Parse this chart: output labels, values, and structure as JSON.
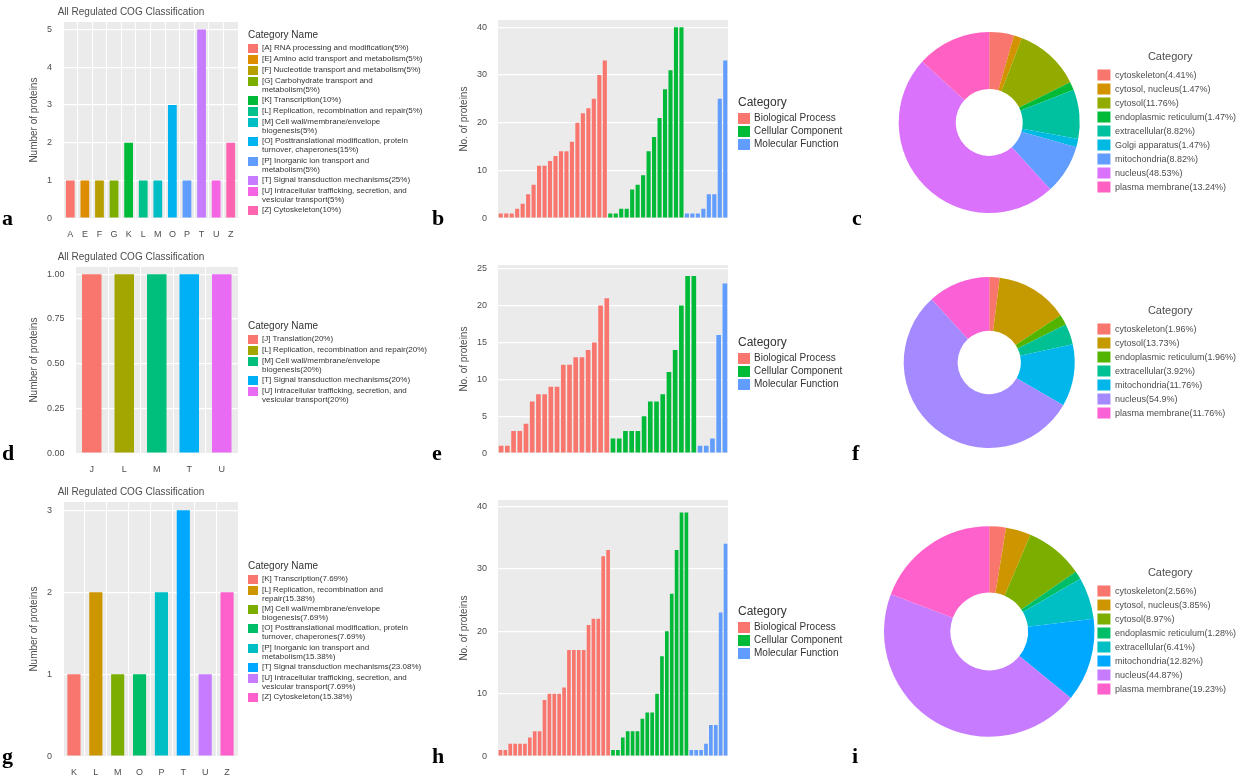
{
  "chart_data": [
    {
      "type": "bar",
      "title": "All Regulated COG Classification",
      "ylabel": "Number of proteins",
      "legend_title": "Category Name",
      "legend": "right",
      "grid": true,
      "annotations": [
        "a"
      ],
      "categories": [
        "A",
        "E",
        "F",
        "G",
        "K",
        "L",
        "M",
        "O",
        "P",
        "T",
        "U",
        "Z"
      ],
      "ylim": [
        0,
        5.2
      ],
      "yticks": [
        0,
        1,
        2,
        3,
        4,
        5
      ],
      "series": [
        {
          "name": "[A] RNA processing and modification(5%)",
          "color": "#f8766d",
          "values": [
            1,
            null,
            null,
            null,
            null,
            null,
            null,
            null,
            null,
            null,
            null,
            null
          ]
        },
        {
          "name": "[E] Amino acid transport and metabolism(5%)",
          "color": "#de8c00",
          "values": [
            null,
            1,
            null,
            null,
            null,
            null,
            null,
            null,
            null,
            null,
            null,
            null
          ]
        },
        {
          "name": "[F] Nucleotide transport and metabolism(5%)",
          "color": "#b79f00",
          "values": [
            null,
            null,
            1,
            null,
            null,
            null,
            null,
            null,
            null,
            null,
            null,
            null
          ]
        },
        {
          "name": "[G] Carbohydrate transport and metabolism(5%)",
          "color": "#7cae00",
          "values": [
            null,
            null,
            null,
            1,
            null,
            null,
            null,
            null,
            null,
            null,
            null,
            null
          ]
        },
        {
          "name": "[K] Transcription(10%)",
          "color": "#00ba38",
          "values": [
            null,
            null,
            null,
            null,
            2,
            null,
            null,
            null,
            null,
            null,
            null,
            null
          ]
        },
        {
          "name": "[L] Replication, recombination and repair(5%)",
          "color": "#00c08b",
          "values": [
            null,
            null,
            null,
            null,
            null,
            1,
            null,
            null,
            null,
            null,
            null,
            null
          ]
        },
        {
          "name": "[M] Cell wall/membrane/envelope biogenesis(5%)",
          "color": "#00bfc4",
          "values": [
            null,
            null,
            null,
            null,
            null,
            null,
            1,
            null,
            null,
            null,
            null,
            null
          ]
        },
        {
          "name": "[O] Posttranslational modification, protein turnover, chaperones(15%)",
          "color": "#00b4f0",
          "values": [
            null,
            null,
            null,
            null,
            null,
            null,
            null,
            3,
            null,
            null,
            null,
            null
          ]
        },
        {
          "name": "[P] Inorganic ion transport and metabolism(5%)",
          "color": "#619cff",
          "values": [
            null,
            null,
            null,
            null,
            null,
            null,
            null,
            null,
            1,
            null,
            null,
            null
          ]
        },
        {
          "name": "[T] Signal transduction mechanisms(25%)",
          "color": "#c77cff",
          "values": [
            null,
            null,
            null,
            null,
            null,
            null,
            null,
            null,
            null,
            5,
            null,
            null
          ]
        },
        {
          "name": "[U] Intracellular trafficking, secretion, and vesicular transport(5%)",
          "color": "#f564e3",
          "values": [
            null,
            null,
            null,
            null,
            null,
            null,
            null,
            null,
            null,
            null,
            1,
            null
          ]
        },
        {
          "name": "[Z] Cytoskeleton(10%)",
          "color": "#ff64b0",
          "values": [
            null,
            null,
            null,
            null,
            null,
            null,
            null,
            null,
            null,
            null,
            null,
            2
          ]
        }
      ]
    },
    {
      "type": "bar",
      "ylabel": "No. of proteins",
      "legend_title": "Category",
      "legend": "right",
      "grid": "y",
      "annotations": [
        "b"
      ],
      "categories": [
        null,
        null,
        null,
        null,
        null,
        null,
        null,
        null,
        null,
        null,
        null,
        null,
        null,
        null,
        null,
        null,
        null,
        null,
        null,
        null,
        null,
        null,
        null,
        null,
        null,
        null,
        null,
        null,
        null,
        null,
        null,
        null,
        null,
        null,
        null,
        null,
        null,
        null,
        null,
        null,
        null,
        null
      ],
      "ylim": [
        0,
        41.5
      ],
      "yticks": [
        0,
        10,
        20,
        30,
        40
      ],
      "series": [
        {
          "name": "Biological Process",
          "color": "#f8766d",
          "values": [
            1,
            1,
            1,
            2,
            3,
            5,
            7,
            11,
            11,
            12,
            13,
            14,
            14,
            16,
            20,
            22,
            23,
            25,
            30,
            33,
            null,
            null,
            null,
            null,
            null,
            null,
            null,
            null,
            null,
            null,
            null,
            null,
            null,
            null,
            null,
            null,
            null,
            null,
            null,
            null,
            null,
            null
          ]
        },
        {
          "name": "Cellular Component",
          "color": "#00ba38",
          "values": [
            null,
            null,
            null,
            null,
            null,
            null,
            null,
            null,
            null,
            null,
            null,
            null,
            null,
            null,
            null,
            null,
            null,
            null,
            null,
            null,
            1,
            1,
            2,
            2,
            6,
            7,
            9,
            14,
            17,
            21,
            27,
            31,
            40,
            40,
            null,
            null,
            null,
            null,
            null,
            null,
            null,
            null
          ]
        },
        {
          "name": "Molecular Function",
          "color": "#619cff",
          "values": [
            null,
            null,
            null,
            null,
            null,
            null,
            null,
            null,
            null,
            null,
            null,
            null,
            null,
            null,
            null,
            null,
            null,
            null,
            null,
            null,
            null,
            null,
            null,
            null,
            null,
            null,
            null,
            null,
            null,
            null,
            null,
            null,
            null,
            null,
            1,
            1,
            1,
            2,
            5,
            5,
            25,
            33
          ]
        }
      ]
    },
    {
      "type": "donut",
      "legend_title": "Category",
      "legend": "right",
      "annotations": [
        "c"
      ],
      "categories": [
        "cytoskeleton(4.41%)",
        "cytosol, nucleus(1.47%)",
        "cytosol(11.76%)",
        "endoplasmic reticulum(1.47%)",
        "extracellular(8.82%)",
        "Golgi apparatus(1.47%)",
        "mitochondria(8.82%)",
        "nucleus(48.53%)",
        "plasma membrane(13.24%)"
      ],
      "values": [
        4.41,
        1.47,
        11.76,
        1.47,
        8.82,
        1.47,
        8.82,
        48.53,
        13.24
      ],
      "colors": [
        "#f8766d",
        "#d39200",
        "#93aa00",
        "#00ba38",
        "#00c19f",
        "#00b9e3",
        "#619cff",
        "#db72fb",
        "#ff61c3"
      ]
    },
    {
      "type": "bar",
      "title": "All Regulated COG Classification",
      "ylabel": "Number of proteins",
      "legend_title": "Category Name",
      "legend": "right",
      "grid": true,
      "annotations": [
        "d"
      ],
      "categories": [
        "J",
        "L",
        "M",
        "T",
        "U"
      ],
      "ylim": [
        0,
        1.04
      ],
      "yticks": [
        {
          "value": 0,
          "label": "0.00"
        },
        {
          "value": 0.25,
          "label": "0.25"
        },
        {
          "value": 0.5,
          "label": "0.50"
        },
        {
          "value": 0.75,
          "label": "0.75"
        },
        {
          "value": 1,
          "label": "1.00"
        }
      ],
      "series": [
        {
          "name": "[J] Translation(20%)",
          "color": "#f8766d",
          "values": [
            1,
            null,
            null,
            null,
            null
          ]
        },
        {
          "name": "[L] Replication, recombination and repair(20%)",
          "color": "#a3a500",
          "values": [
            null,
            1,
            null,
            null,
            null
          ]
        },
        {
          "name": "[M] Cell wall/membrane/envelope biogenesis(20%)",
          "color": "#00bf7d",
          "values": [
            null,
            null,
            1,
            null,
            null
          ]
        },
        {
          "name": "[T] Signal transduction mechanisms(20%)",
          "color": "#00b0f6",
          "values": [
            null,
            null,
            null,
            1,
            null
          ]
        },
        {
          "name": "[U] Intracellular trafficking, secretion, and vesicular transport(20%)",
          "color": "#e76bf3",
          "values": [
            null,
            null,
            null,
            null,
            1
          ]
        }
      ]
    },
    {
      "type": "bar",
      "ylabel": "No. of proteins",
      "legend_title": "Category",
      "legend": "right",
      "grid": "y",
      "annotations": [
        "e"
      ],
      "categories": [
        null,
        null,
        null,
        null,
        null,
        null,
        null,
        null,
        null,
        null,
        null,
        null,
        null,
        null,
        null,
        null,
        null,
        null,
        null,
        null,
        null,
        null,
        null,
        null,
        null,
        null,
        null,
        null,
        null,
        null,
        null,
        null,
        null,
        null,
        null,
        null,
        null
      ],
      "ylim": [
        0,
        25.5
      ],
      "yticks": [
        0,
        5,
        10,
        15,
        20,
        25
      ],
      "series": [
        {
          "name": "Biological Process",
          "color": "#f8766d",
          "values": [
            1,
            1,
            3,
            3,
            4,
            7,
            8,
            8,
            9,
            9,
            12,
            12,
            13,
            13,
            14,
            15,
            20,
            21,
            null,
            null,
            null,
            null,
            null,
            null,
            null,
            null,
            null,
            null,
            null,
            null,
            null,
            null,
            null,
            null,
            null,
            null,
            null
          ]
        },
        {
          "name": "Cellular Component",
          "color": "#00ba38",
          "values": [
            null,
            null,
            null,
            null,
            null,
            null,
            null,
            null,
            null,
            null,
            null,
            null,
            null,
            null,
            null,
            null,
            null,
            null,
            2,
            2,
            3,
            3,
            3,
            5,
            7,
            7,
            8,
            11,
            14,
            20,
            24,
            24,
            null,
            null,
            null,
            null,
            null
          ]
        },
        {
          "name": "Molecular Function",
          "color": "#619cff",
          "values": [
            null,
            null,
            null,
            null,
            null,
            null,
            null,
            null,
            null,
            null,
            null,
            null,
            null,
            null,
            null,
            null,
            null,
            null,
            null,
            null,
            null,
            null,
            null,
            null,
            null,
            null,
            null,
            null,
            null,
            null,
            null,
            null,
            1,
            1,
            2,
            16,
            23
          ]
        }
      ]
    },
    {
      "type": "donut",
      "legend_title": "Category",
      "legend": "right",
      "annotations": [
        "f"
      ],
      "categories": [
        "cytoskeleton(1.96%)",
        "cytosol(13.73%)",
        "endoplasmic reticulum(1.96%)",
        "extracellular(3.92%)",
        "mitochondria(11.76%)",
        "nucleus(54.9%)",
        "plasma membrane(11.76%)"
      ],
      "values": [
        1.96,
        13.73,
        1.96,
        3.92,
        11.76,
        54.9,
        11.76
      ],
      "colors": [
        "#f8766d",
        "#c49a00",
        "#53b400",
        "#00c094",
        "#00b6eb",
        "#a58aff",
        "#fb61d7"
      ]
    },
    {
      "type": "bar",
      "title": "All Regulated COG Classification",
      "ylabel": "Number of proteins",
      "legend_title": "Category Name",
      "legend": "right",
      "grid": true,
      "annotations": [
        "g"
      ],
      "categories": [
        "K",
        "L",
        "M",
        "O",
        "P",
        "T",
        "U",
        "Z"
      ],
      "ylim": [
        0,
        3.1
      ],
      "yticks": [
        0,
        1,
        2,
        3
      ],
      "series": [
        {
          "name": "[K] Transcription(7.69%)",
          "color": "#f8766d",
          "values": [
            1,
            null,
            null,
            null,
            null,
            null,
            null,
            null
          ]
        },
        {
          "name": "[L] Replication, recombination and repair(15.38%)",
          "color": "#cd9600",
          "values": [
            null,
            2,
            null,
            null,
            null,
            null,
            null,
            null
          ]
        },
        {
          "name": "[M] Cell wall/membrane/envelope biogenesis(7.69%)",
          "color": "#7cae00",
          "values": [
            null,
            null,
            1,
            null,
            null,
            null,
            null,
            null
          ]
        },
        {
          "name": "[O] Posttranslational modification, protein turnover, chaperones(7.69%)",
          "color": "#00be67",
          "values": [
            null,
            null,
            null,
            1,
            null,
            null,
            null,
            null
          ]
        },
        {
          "name": "[P] Inorganic ion transport and metabolism(15.38%)",
          "color": "#00bfc4",
          "values": [
            null,
            null,
            null,
            null,
            2,
            null,
            null,
            null
          ]
        },
        {
          "name": "[T] Signal transduction mechanisms(23.08%)",
          "color": "#00a9ff",
          "values": [
            null,
            null,
            null,
            null,
            null,
            3,
            null,
            null
          ]
        },
        {
          "name": "[U] Intracellular trafficking, secretion, and vesicular transport(7.69%)",
          "color": "#c77cff",
          "values": [
            null,
            null,
            null,
            null,
            null,
            null,
            1,
            null
          ]
        },
        {
          "name": "[Z] Cytoskeleton(15.38%)",
          "color": "#ff61cc",
          "values": [
            null,
            null,
            null,
            null,
            null,
            null,
            null,
            2
          ]
        }
      ]
    },
    {
      "type": "bar",
      "ylabel": "No. of proteins",
      "legend_title": "Category",
      "legend": "right",
      "grid": "y",
      "annotations": [
        "h"
      ],
      "categories": [
        null,
        null,
        null,
        null,
        null,
        null,
        null,
        null,
        null,
        null,
        null,
        null,
        null,
        null,
        null,
        null,
        null,
        null,
        null,
        null,
        null,
        null,
        null,
        null,
        null,
        null,
        null,
        null,
        null,
        null,
        null,
        null,
        null,
        null,
        null,
        null,
        null,
        null,
        null,
        null,
        null,
        null,
        null,
        null,
        null,
        null,
        null
      ],
      "ylim": [
        0,
        41
      ],
      "yticks": [
        0,
        10,
        20,
        30,
        40
      ],
      "series": [
        {
          "name": "Biological Process",
          "color": "#f8766d",
          "values": [
            1,
            1,
            2,
            2,
            2,
            2,
            3,
            4,
            4,
            9,
            10,
            10,
            10,
            11,
            17,
            17,
            17,
            17,
            21,
            22,
            22,
            32,
            33,
            null,
            null,
            null,
            null,
            null,
            null,
            null,
            null,
            null,
            null,
            null,
            null,
            null,
            null,
            null,
            null,
            null,
            null,
            null,
            null,
            null,
            null,
            null,
            null
          ]
        },
        {
          "name": "Cellular Component",
          "color": "#00ba38",
          "values": [
            null,
            null,
            null,
            null,
            null,
            null,
            null,
            null,
            null,
            null,
            null,
            null,
            null,
            null,
            null,
            null,
            null,
            null,
            null,
            null,
            null,
            null,
            null,
            1,
            1,
            3,
            4,
            4,
            4,
            6,
            7,
            7,
            10,
            16,
            20,
            26,
            33,
            39,
            39,
            null,
            null,
            null,
            null,
            null,
            null,
            null,
            null
          ]
        },
        {
          "name": "Molecular Function",
          "color": "#619cff",
          "values": [
            null,
            null,
            null,
            null,
            null,
            null,
            null,
            null,
            null,
            null,
            null,
            null,
            null,
            null,
            null,
            null,
            null,
            null,
            null,
            null,
            null,
            null,
            null,
            null,
            null,
            null,
            null,
            null,
            null,
            null,
            null,
            null,
            null,
            null,
            null,
            null,
            null,
            null,
            null,
            1,
            1,
            1,
            2,
            5,
            5,
            23,
            34
          ]
        }
      ]
    },
    {
      "type": "donut",
      "legend_title": "Category",
      "legend": "right",
      "annotations": [
        "i"
      ],
      "categories": [
        "cytoskeleton(2.56%)",
        "cytosol, nucleus(3.85%)",
        "cytosol(8.97%)",
        "endoplasmic reticulum(1.28%)",
        "extracellular(6.41%)",
        "mitochondria(12.82%)",
        "nucleus(44.87%)",
        "plasma membrane(19.23%)"
      ],
      "values": [
        2.56,
        3.85,
        8.97,
        1.28,
        6.41,
        12.82,
        44.87,
        19.23
      ],
      "colors": [
        "#f8766d",
        "#cd9600",
        "#7cae00",
        "#00be67",
        "#00bfc4",
        "#00a9ff",
        "#c77cff",
        "#ff61cc"
      ]
    }
  ]
}
